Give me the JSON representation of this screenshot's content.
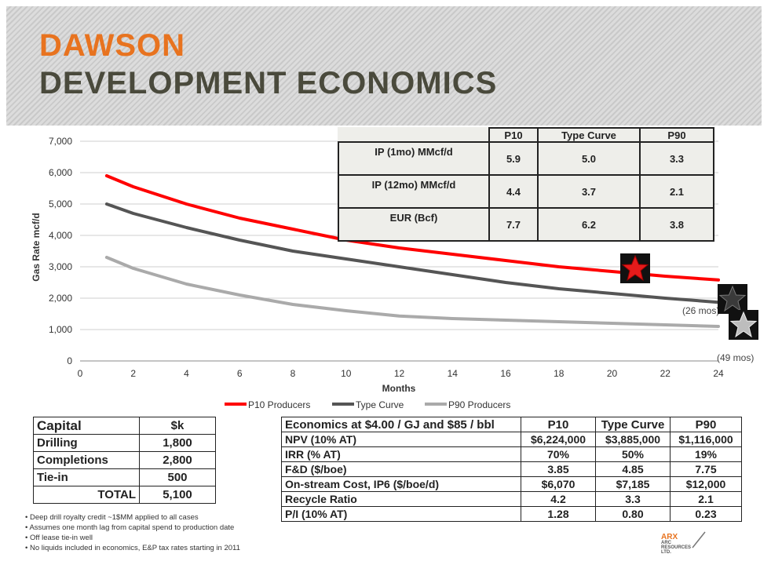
{
  "header": {
    "line1": "DAWSON",
    "line2": "DEVELOPMENT ECONOMICS"
  },
  "chart_data": {
    "type": "line",
    "xlabel": "Months",
    "ylabel": "Gas Rate mcf/d",
    "xlim": [
      0,
      24
    ],
    "ylim": [
      0,
      7000
    ],
    "x_ticks": [
      "0",
      "2",
      "4",
      "6",
      "8",
      "10",
      "12",
      "14",
      "16",
      "18",
      "20",
      "22",
      "24"
    ],
    "y_ticks": [
      "0",
      "1,000",
      "2,000",
      "3,000",
      "4,000",
      "5,000",
      "6,000",
      "7,000"
    ],
    "grid": "horizontal",
    "legend": "bottom",
    "series": [
      {
        "name": "P10 Producers",
        "color": "#ff0000",
        "x": [
          1,
          2,
          4,
          6,
          8,
          10,
          12,
          14,
          16,
          18,
          20,
          22,
          24
        ],
        "y": [
          5900,
          5550,
          5000,
          4550,
          4200,
          3850,
          3600,
          3400,
          3200,
          3000,
          2850,
          2700,
          2580
        ]
      },
      {
        "name": "Type Curve",
        "color": "#555555",
        "x": [
          1,
          2,
          4,
          6,
          8,
          10,
          12,
          14,
          16,
          18,
          20,
          22,
          24
        ],
        "y": [
          5000,
          4700,
          4250,
          3850,
          3500,
          3250,
          3000,
          2750,
          2500,
          2300,
          2150,
          2000,
          1870
        ]
      },
      {
        "name": "P90 Producers",
        "color": "#aaaaaa",
        "x": [
          1,
          2,
          4,
          6,
          8,
          10,
          12,
          14,
          16,
          18,
          20,
          22,
          24
        ],
        "y": [
          3300,
          2950,
          2450,
          2100,
          1800,
          1600,
          1430,
          1350,
          1300,
          1250,
          1200,
          1150,
          1100
        ]
      }
    ],
    "annotations": [
      "(26 mos)",
      "(49 mos)"
    ],
    "markers": [
      {
        "icon": "red-star-icon",
        "color": "#e51b1b"
      },
      {
        "icon": "dark-star-icon",
        "color": "#3a3a3a"
      },
      {
        "icon": "silver-star-icon",
        "color": "#bdbdbd"
      }
    ]
  },
  "kpi_table": {
    "headers": [
      "",
      "P10",
      "Type Curve",
      "P90"
    ],
    "rows": [
      {
        "label": "IP (1mo) MMcf/d",
        "values": [
          "5.9",
          "5.0",
          "3.3"
        ]
      },
      {
        "label": "IP (12mo) MMcf/d",
        "values": [
          "4.4",
          "3.7",
          "2.1"
        ]
      },
      {
        "label": "EUR (Bcf)",
        "values": [
          "7.7",
          "6.2",
          "3.8"
        ]
      }
    ]
  },
  "capital_table": {
    "headers": [
      "Capital",
      "$k"
    ],
    "rows": [
      [
        "Drilling",
        "1,800"
      ],
      [
        "Completions",
        "2,800"
      ],
      [
        "Tie-in",
        "500"
      ],
      [
        "TOTAL",
        "5,100"
      ]
    ]
  },
  "economics_table": {
    "headers": [
      "Economics at $4.00 / GJ and $85 / bbl",
      "P10",
      "Type Curve",
      "P90"
    ],
    "rows": [
      [
        "NPV (10% AT)",
        "$6,224,000",
        "$3,885,000",
        "$1,116,000"
      ],
      [
        "IRR (% AT)",
        "70%",
        "50%",
        "19%"
      ],
      [
        "F&D ($/boe)",
        "3.85",
        "4.85",
        "7.75"
      ],
      [
        "On-stream Cost, IP6 ($/boe/d)",
        "$6,070",
        "$7,185",
        "$12,000"
      ],
      [
        "Recycle Ratio",
        "4.2",
        "3.3",
        "2.1"
      ],
      [
        "P/I (10% AT)",
        "1.28",
        "0.80",
        "0.23"
      ]
    ]
  },
  "notes": [
    "• Deep drill royalty credit ~1$MM applied to all cases",
    "• Assumes one month lag from capital spend to production date",
    "• Off lease tie-in well",
    "• No liquids included in economics, E&P tax rates starting in 2011"
  ],
  "logo": {
    "line1": "ARX",
    "line2": "ARC",
    "line3": "RESOURCES",
    "line4": "LTD."
  }
}
